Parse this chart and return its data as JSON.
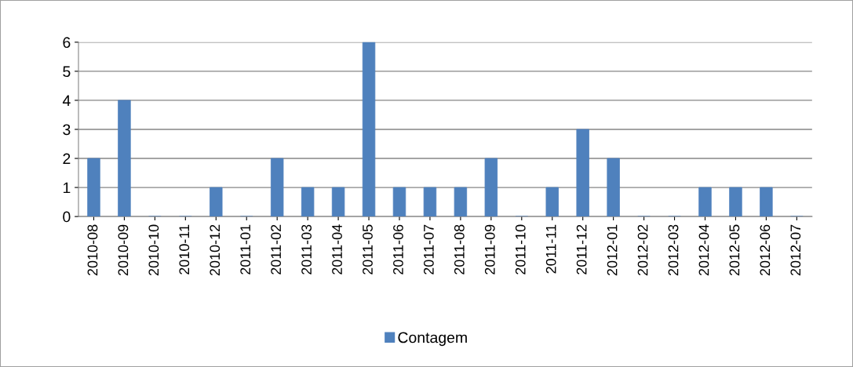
{
  "chart_data": {
    "type": "bar",
    "categories": [
      "2010-08",
      "2010-09",
      "2010-10",
      "2010-11",
      "2010-12",
      "2011-01",
      "2011-02",
      "2011-03",
      "2011-04",
      "2011-05",
      "2011-06",
      "2011-07",
      "2011-08",
      "2011-09",
      "2011-10",
      "2011-11",
      "2011-12",
      "2012-01",
      "2012-02",
      "2012-03",
      "2012-04",
      "2012-05",
      "2012-06",
      "2012-07"
    ],
    "series": [
      {
        "name": "Contagem",
        "color": "#4f81bd",
        "values": [
          2,
          4,
          0,
          0,
          1,
          0,
          2,
          1,
          1,
          6,
          1,
          1,
          1,
          2,
          0,
          1,
          3,
          2,
          0,
          0,
          1,
          1,
          1,
          0
        ]
      }
    ],
    "ylim": [
      0,
      6
    ],
    "yticks": [
      0,
      1,
      2,
      3,
      4,
      5,
      6
    ],
    "grid": "y",
    "legend": "bottom"
  }
}
